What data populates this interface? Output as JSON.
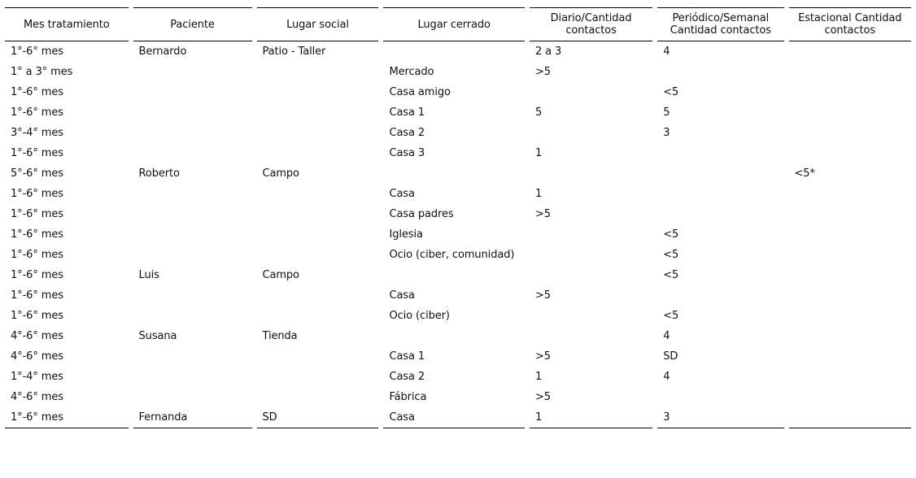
{
  "colors": {
    "background": "#ffffff",
    "text": "#111111",
    "rule": "#000000"
  },
  "table": {
    "columns": [
      {
        "label": "Mes tratamiento"
      },
      {
        "label": "Paciente"
      },
      {
        "label": "Lugar social"
      },
      {
        "label": "Lugar cerrado"
      },
      {
        "label": "Diario/Cantidad contactos"
      },
      {
        "label": "Periódico/Semanal Cantidad contactos"
      },
      {
        "label": "Estacional Cantidad contactos"
      }
    ],
    "rows": [
      [
        "1°-6° mes",
        "Bernardo",
        "Patio - Taller",
        "",
        "2 a 3",
        "4",
        ""
      ],
      [
        "1° a 3° mes",
        "",
        "",
        "Mercado",
        ">5",
        "",
        ""
      ],
      [
        "1°-6° mes",
        "",
        "",
        "Casa amigo",
        "",
        "<5",
        ""
      ],
      [
        "1°-6° mes",
        "",
        "",
        "Casa 1",
        "5",
        "5",
        ""
      ],
      [
        "3°-4° mes",
        "",
        "",
        "Casa 2",
        "",
        "3",
        ""
      ],
      [
        "1°-6° mes",
        "",
        "",
        "Casa 3",
        "1",
        "",
        ""
      ],
      [
        "5°-6° mes",
        "Roberto",
        "Campo",
        "",
        "",
        "",
        "<5*"
      ],
      [
        "1°-6° mes",
        "",
        "",
        "Casa",
        "1",
        "",
        ""
      ],
      [
        "1°-6° mes",
        "",
        "",
        "Casa padres",
        ">5",
        "",
        ""
      ],
      [
        "1°-6° mes",
        "",
        "",
        "Iglesia",
        "",
        "<5",
        ""
      ],
      [
        "1°-6° mes",
        "",
        "",
        "Ocio (ciber, comunidad)",
        "",
        "<5",
        ""
      ],
      [
        "1°-6° mes",
        "Luis",
        "Campo",
        "",
        "",
        "<5",
        ""
      ],
      [
        "1°-6° mes",
        "",
        "",
        "Casa",
        ">5",
        "",
        ""
      ],
      [
        "1°-6° mes",
        "",
        "",
        "Ocio (ciber)",
        "",
        "<5",
        ""
      ],
      [
        "4°-6° mes",
        "Susana",
        "Tienda",
        "",
        "",
        "4",
        ""
      ],
      [
        "4°-6° mes",
        "",
        "",
        "Casa 1",
        ">5",
        "SD",
        ""
      ],
      [
        "1°-4° mes",
        "",
        "",
        "Casa 2",
        "1",
        "4",
        ""
      ],
      [
        "4°-6° mes",
        "",
        "",
        "Fábrica",
        ">5",
        "",
        ""
      ],
      [
        "1°-6° mes",
        "Fernanda",
        "SD",
        "Casa",
        "1",
        "3",
        ""
      ]
    ]
  }
}
